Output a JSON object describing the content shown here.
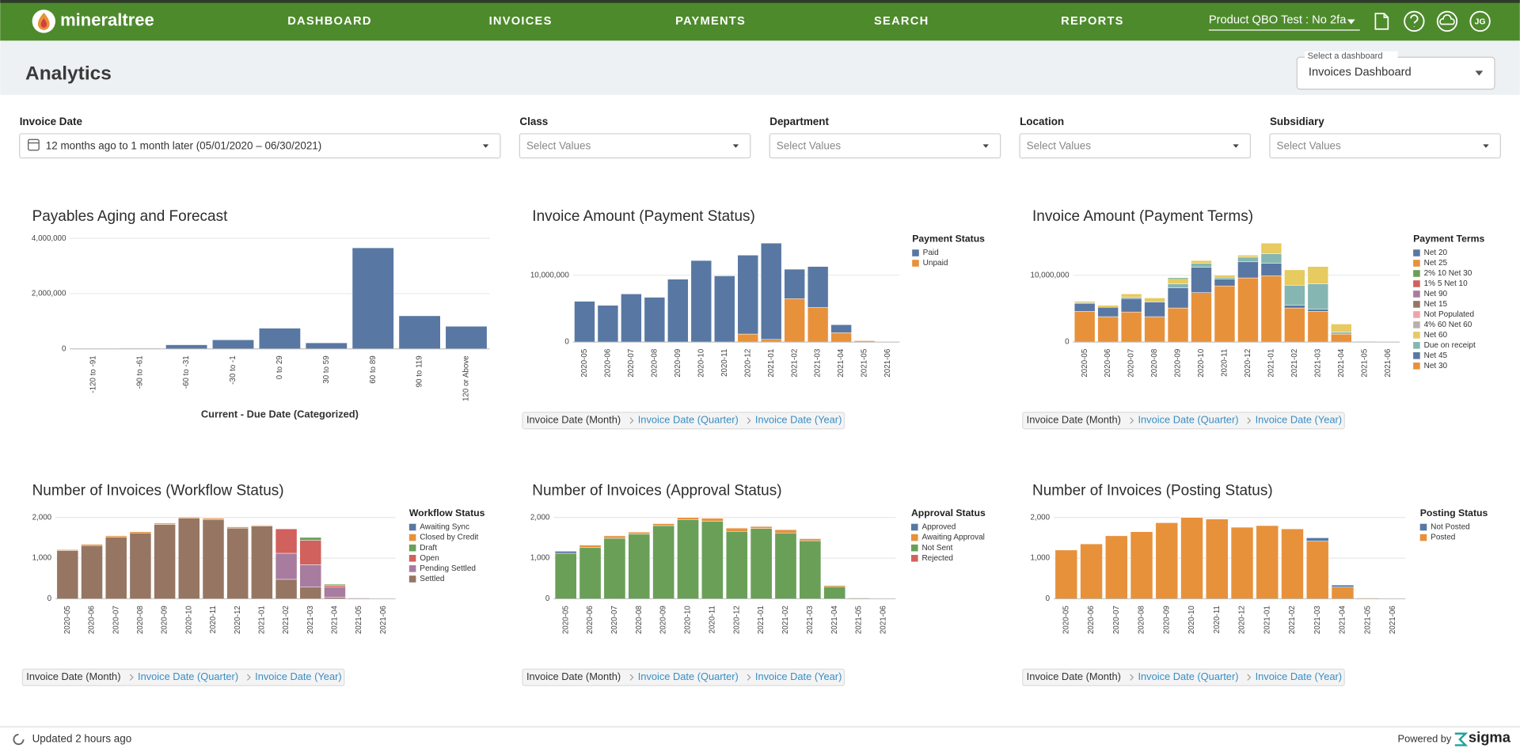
{
  "nav": {
    "logo": "mineraltree",
    "items": [
      "DASHBOARD",
      "INVOICES",
      "PAYMENTS",
      "SEARCH",
      "REPORTS"
    ],
    "account": "Product QBO Test : No 2fa",
    "avatar": "JG"
  },
  "header": {
    "title": "Analytics",
    "dashboard_label": "Select a dashboard",
    "dashboard": "Invoices Dashboard"
  },
  "filters": [
    {
      "label": "Invoice Date",
      "value": "12 months ago to 1 month later (05/01/2020 – 06/30/2021)"
    },
    {
      "label": "Class",
      "value": "Select Values"
    },
    {
      "label": "Department",
      "value": "Select Values"
    },
    {
      "label": "Location",
      "value": "Select Values"
    },
    {
      "label": "Subsidiary",
      "value": "Select Values"
    }
  ],
  "chart_data": [
    {
      "type": "bar",
      "title": "Payables Aging and Forecast",
      "xlabel": "Current - Due Date (Categorized)",
      "categories": [
        "-120 to -91",
        "-90 to -61",
        "-60 to -31",
        "-30 to -1",
        "0 to 29",
        "30 to 59",
        "60 to 89",
        "90 to 119",
        "120 or Above"
      ],
      "values": [
        0,
        10000,
        140000,
        320000,
        740000,
        210000,
        3650000,
        1190000,
        810000
      ],
      "color": "#5878a3",
      "ylim": [
        0,
        4000000
      ],
      "yticks": [
        0,
        {
          "value": 2000000,
          "label": "2,000,000"
        },
        {
          "value": 4000000,
          "label": "4,000,000"
        }
      ],
      "grid": true
    },
    {
      "type": "stacked_bar",
      "title": "Invoice Amount (Payment Status)",
      "legend_title": "Payment Status",
      "categories": [
        "2020-05",
        "2020-06",
        "2020-07",
        "2020-08",
        "2020-09",
        "2020-10",
        "2020-11",
        "2020-12",
        "2021-01",
        "2021-02",
        "2021-03",
        "2021-04",
        "2021-05",
        "2021-06"
      ],
      "series": [
        {
          "name": "Paid",
          "color": "#5878a3",
          "values": [
            6100000,
            5500000,
            7200000,
            6700000,
            9400000,
            12200000,
            9900000,
            11800000,
            14400000,
            4400000,
            6100000,
            1200000,
            0,
            0
          ]
        },
        {
          "name": "Unpaid",
          "color": "#e8913b",
          "values": [
            0,
            0,
            0,
            0,
            0,
            0,
            0,
            1200000,
            400000,
            6500000,
            5200000,
            1400000,
            200000,
            0
          ]
        }
      ],
      "ylim": [
        0,
        15000000
      ],
      "yticks": [
        0,
        {
          "value": 10000000,
          "label": "10,000,000"
        }
      ],
      "grid": true,
      "drill": [
        "Invoice Date (Month)",
        "Invoice Date (Quarter)",
        "Invoice Date (Year)"
      ]
    },
    {
      "type": "stacked_bar",
      "title": "Invoice Amount (Payment Terms)",
      "legend_title": "Payment Terms",
      "categories": [
        "2020-05",
        "2020-06",
        "2020-07",
        "2020-08",
        "2020-09",
        "2020-10",
        "2020-11",
        "2020-12",
        "2021-01",
        "2021-02",
        "2021-03",
        "2021-04",
        "2021-05",
        "2021-06"
      ],
      "series": [
        {
          "name": "Net 20",
          "color": "#5878a3",
          "values": [
            0,
            0,
            0,
            0,
            0,
            0,
            0,
            0,
            0,
            0,
            0,
            0,
            0,
            0
          ]
        },
        {
          "name": "Net 25",
          "color": "#e8913b",
          "values": [
            0,
            0,
            0,
            0,
            0,
            0,
            0,
            0,
            0,
            0,
            0,
            0,
            0,
            0
          ]
        },
        {
          "name": "2% 10 Net 30",
          "color": "#6a9f58",
          "values": [
            0,
            0,
            0,
            0,
            200000,
            0,
            0,
            0,
            0,
            0,
            0,
            0,
            0,
            0
          ]
        },
        {
          "name": "1% 5 Net 10",
          "color": "#d1615d",
          "values": [
            0,
            0,
            0,
            0,
            0,
            0,
            0,
            0,
            0,
            0,
            0,
            0,
            0,
            0
          ]
        },
        {
          "name": "Net 90",
          "color": "#a87c9f",
          "values": [
            0,
            0,
            0,
            0,
            0,
            0,
            0,
            0,
            0,
            0,
            0,
            0,
            0,
            0
          ]
        },
        {
          "name": "Net 15",
          "color": "#967662",
          "values": [
            0,
            0,
            0,
            0,
            0,
            0,
            0,
            0,
            0,
            0,
            0,
            0,
            0,
            0
          ]
        },
        {
          "name": "Not Populated",
          "color": "#f1a2a9",
          "values": [
            0,
            0,
            0,
            0,
            0,
            0,
            0,
            0,
            0,
            0,
            0,
            0,
            0,
            0
          ]
        },
        {
          "name": "4% 60 Net 60",
          "color": "#b8b0ac",
          "values": [
            0,
            0,
            0,
            0,
            0,
            0,
            0,
            0,
            0,
            0,
            0,
            0,
            0,
            0
          ]
        },
        {
          "name": "Net 60",
          "color": "#e7ca60",
          "values": [
            200000,
            300000,
            500000,
            600000,
            700000,
            400000,
            300000,
            300000,
            1600000,
            2300000,
            2600000,
            1200000,
            0,
            0
          ]
        },
        {
          "name": "Due on receipt",
          "color": "#85b6b2",
          "values": [
            100000,
            0,
            200000,
            0,
            600000,
            600000,
            300000,
            700000,
            1400000,
            3000000,
            3800000,
            300000,
            100000,
            0
          ]
        },
        {
          "name": "Net 45",
          "color": "#5878a3",
          "values": [
            1200000,
            1400000,
            2000000,
            2200000,
            3000000,
            3800000,
            1000000,
            2400000,
            1900000,
            400000,
            300000,
            0,
            0,
            0
          ]
        },
        {
          "name": "Net 30",
          "color": "#e8913b",
          "values": [
            4600000,
            3800000,
            4500000,
            3800000,
            5100000,
            7400000,
            8400000,
            9600000,
            9900000,
            5100000,
            4600000,
            1200000,
            0,
            0
          ]
        }
      ],
      "ylim": [
        0,
        15000000
      ],
      "yticks": [
        0,
        {
          "value": 10000000,
          "label": "10,000,000"
        }
      ],
      "grid": true,
      "drill": [
        "Invoice Date (Month)",
        "Invoice Date (Quarter)",
        "Invoice Date (Year)"
      ]
    },
    {
      "type": "stacked_bar",
      "title": "Number of Invoices (Workflow Status)",
      "legend_title": "Workflow Status",
      "categories": [
        "2020-05",
        "2020-06",
        "2020-07",
        "2020-08",
        "2020-09",
        "2020-10",
        "2020-11",
        "2020-12",
        "2021-01",
        "2021-02",
        "2021-03",
        "2021-04",
        "2021-05",
        "2021-06"
      ],
      "series": [
        {
          "name": "Awaiting Sync",
          "color": "#5878a3",
          "values": [
            0,
            0,
            0,
            0,
            0,
            0,
            0,
            0,
            0,
            0,
            0,
            0,
            0,
            0
          ]
        },
        {
          "name": "Closed by Credit",
          "color": "#e8913b",
          "values": [
            20,
            30,
            30,
            30,
            30,
            30,
            30,
            30,
            20,
            0,
            0,
            0,
            0,
            0
          ]
        },
        {
          "name": "Draft",
          "color": "#6a9f58",
          "values": [
            0,
            0,
            0,
            0,
            0,
            0,
            0,
            0,
            0,
            0,
            70,
            30,
            0,
            0
          ]
        },
        {
          "name": "Open",
          "color": "#d1615d",
          "values": [
            0,
            0,
            0,
            0,
            0,
            0,
            0,
            0,
            0,
            600,
            600,
            40,
            0,
            0
          ]
        },
        {
          "name": "Pending Settled",
          "color": "#a87c9f",
          "values": [
            0,
            0,
            0,
            0,
            0,
            0,
            0,
            0,
            0,
            640,
            550,
            250,
            20,
            0
          ]
        },
        {
          "name": "Settled",
          "color": "#967662",
          "values": [
            1190,
            1310,
            1520,
            1620,
            1830,
            1980,
            1950,
            1740,
            1790,
            480,
            290,
            40,
            0,
            0
          ]
        }
      ],
      "ylim": [
        0,
        2200
      ],
      "yticks": [
        0,
        {
          "value": 1000,
          "label": "1,000"
        },
        {
          "value": 2000,
          "label": "2,000"
        }
      ],
      "grid": true,
      "drill": [
        "Invoice Date (Month)",
        "Invoice Date (Quarter)",
        "Invoice Date (Year)"
      ]
    },
    {
      "type": "stacked_bar",
      "title": "Number of Invoices (Approval Status)",
      "legend_title": "Approval Status",
      "categories": [
        "2020-05",
        "2020-06",
        "2020-07",
        "2020-08",
        "2020-09",
        "2020-10",
        "2020-11",
        "2020-12",
        "2021-01",
        "2021-02",
        "2021-03",
        "2021-04",
        "2021-05",
        "2021-06"
      ],
      "series": [
        {
          "name": "Approved",
          "color": "#5878a3",
          "values": [
            50,
            10,
            10,
            10,
            10,
            10,
            10,
            10,
            10,
            10,
            10,
            10,
            0,
            0
          ]
        },
        {
          "name": "Awaiting Approval",
          "color": "#e8913b",
          "values": [
            0,
            60,
            60,
            50,
            50,
            50,
            70,
            80,
            50,
            80,
            50,
            30,
            0,
            0
          ]
        },
        {
          "name": "Not Sent",
          "color": "#6a9f58",
          "values": [
            1120,
            1260,
            1490,
            1590,
            1800,
            1950,
            1910,
            1660,
            1730,
            1620,
            1430,
            300,
            20,
            0
          ]
        },
        {
          "name": "Rejected",
          "color": "#d1615d",
          "values": [
            0,
            0,
            0,
            0,
            0,
            0,
            0,
            0,
            0,
            0,
            0,
            0,
            0,
            0
          ]
        }
      ],
      "ylim": [
        0,
        2200
      ],
      "yticks": [
        0,
        {
          "value": 1000,
          "label": "1,000"
        },
        {
          "value": 2000,
          "label": "2,000"
        }
      ],
      "grid": true,
      "drill": [
        "Invoice Date (Month)",
        "Invoice Date (Quarter)",
        "Invoice Date (Year)"
      ]
    },
    {
      "type": "stacked_bar",
      "title": "Number of Invoices (Posting Status)",
      "legend_title": "Posting Status",
      "categories": [
        "2020-05",
        "2020-06",
        "2020-07",
        "2020-08",
        "2020-09",
        "2020-10",
        "2020-11",
        "2020-12",
        "2021-01",
        "2021-02",
        "2021-03",
        "2021-04",
        "2021-05",
        "2021-06"
      ],
      "series": [
        {
          "name": "Not Posted",
          "color": "#5878a3",
          "values": [
            0,
            0,
            0,
            0,
            0,
            0,
            0,
            0,
            0,
            0,
            80,
            50,
            0,
            0
          ]
        },
        {
          "name": "Posted",
          "color": "#e8913b",
          "values": [
            1200,
            1350,
            1550,
            1650,
            1870,
            2000,
            1960,
            1760,
            1800,
            1720,
            1420,
            290,
            20,
            0
          ]
        }
      ],
      "ylim": [
        0,
        2200
      ],
      "yticks": [
        0,
        {
          "value": 1000,
          "label": "1,000"
        },
        {
          "value": 2000,
          "label": "2,000"
        }
      ],
      "grid": true,
      "drill": [
        "Invoice Date (Month)",
        "Invoice Date (Quarter)",
        "Invoice Date (Year)"
      ]
    }
  ],
  "footer": {
    "updated": "Updated 2 hours ago",
    "powered_by": "Powered by",
    "brand": "sigma"
  }
}
